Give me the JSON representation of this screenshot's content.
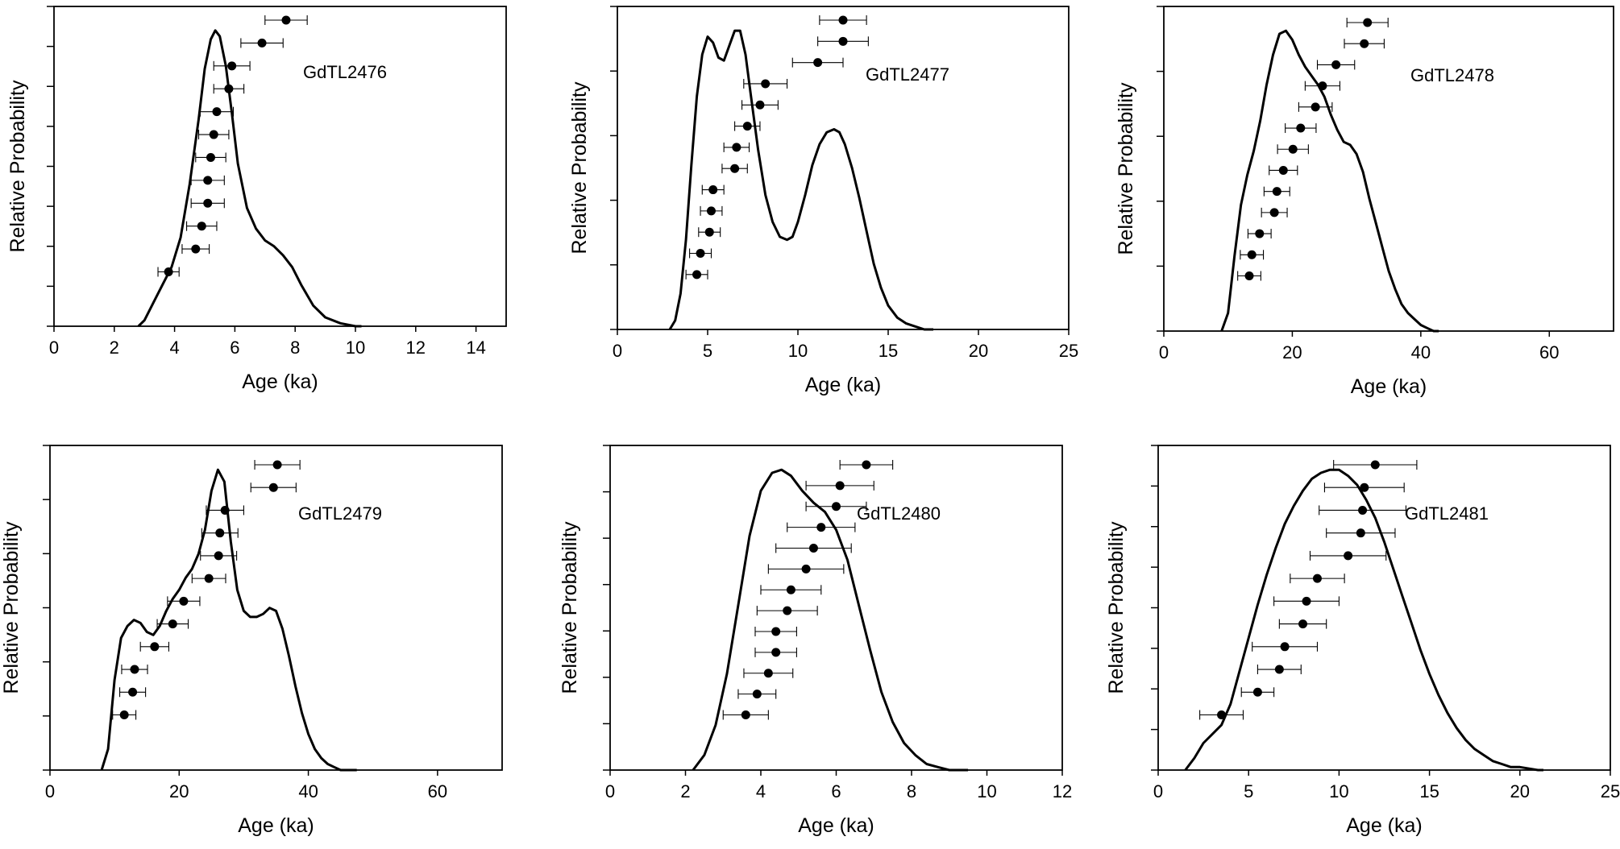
{
  "chart_data": [
    {
      "type": "line",
      "title": "GdTL2476",
      "xlabel": "Age (ka)",
      "ylabel": "Relative Probability",
      "xlim": [
        0,
        15
      ],
      "xticks": [
        0,
        2,
        4,
        6,
        8,
        10,
        12,
        14
      ],
      "yticks_count": 8,
      "grid": false,
      "legend": "none",
      "series": [
        {
          "kind": "density",
          "x": [
            2.8,
            3.0,
            3.3,
            3.6,
            3.9,
            4.2,
            4.5,
            4.8,
            5.0,
            5.2,
            5.35,
            5.5,
            5.7,
            5.9,
            6.1,
            6.4,
            6.7,
            7.0,
            7.3,
            7.6,
            7.9,
            8.2,
            8.6,
            9.0,
            9.5,
            10.0,
            10.2
          ],
          "y": [
            0.0,
            0.02,
            0.08,
            0.14,
            0.2,
            0.3,
            0.48,
            0.7,
            0.87,
            0.97,
            1.0,
            0.98,
            0.88,
            0.72,
            0.55,
            0.4,
            0.33,
            0.29,
            0.27,
            0.24,
            0.2,
            0.14,
            0.07,
            0.03,
            0.01,
            0.0,
            0.0
          ]
        },
        {
          "kind": "ages",
          "age": [
            3.8,
            4.7,
            4.9,
            5.1,
            5.1,
            5.2,
            5.3,
            5.4,
            5.8,
            5.9,
            6.9,
            7.7
          ],
          "err": [
            0.35,
            0.45,
            0.5,
            0.55,
            0.55,
            0.5,
            0.5,
            0.55,
            0.5,
            0.6,
            0.7,
            0.7
          ]
        }
      ]
    },
    {
      "type": "line",
      "title": "GdTL2477",
      "xlabel": "Age (ka)",
      "ylabel": "Relative Probability",
      "xlim": [
        0,
        25
      ],
      "xticks": [
        0,
        5,
        10,
        15,
        20,
        25
      ],
      "yticks_count": 5,
      "grid": false,
      "legend": "none",
      "series": [
        {
          "kind": "density",
          "x": [
            2.9,
            3.2,
            3.5,
            3.8,
            4.1,
            4.4,
            4.7,
            5.0,
            5.3,
            5.6,
            5.9,
            6.2,
            6.5,
            6.8,
            7.1,
            7.4,
            7.8,
            8.2,
            8.6,
            9.0,
            9.4,
            9.7,
            10.0,
            10.4,
            10.8,
            11.2,
            11.6,
            12.0,
            12.3,
            12.6,
            13.0,
            13.4,
            13.8,
            14.2,
            14.6,
            15.0,
            15.5,
            16.0,
            16.5,
            17.0,
            17.5
          ],
          "y": [
            0.0,
            0.03,
            0.12,
            0.3,
            0.55,
            0.78,
            0.92,
            0.98,
            0.96,
            0.91,
            0.9,
            0.95,
            1.0,
            1.0,
            0.92,
            0.78,
            0.6,
            0.45,
            0.36,
            0.31,
            0.3,
            0.31,
            0.36,
            0.45,
            0.55,
            0.62,
            0.66,
            0.67,
            0.66,
            0.62,
            0.54,
            0.44,
            0.33,
            0.22,
            0.14,
            0.08,
            0.04,
            0.02,
            0.01,
            0.0,
            0.0
          ]
        },
        {
          "kind": "ages",
          "age": [
            4.4,
            4.6,
            5.1,
            5.2,
            5.3,
            6.5,
            6.6,
            7.2,
            7.9,
            8.2,
            11.1,
            12.5,
            12.5
          ],
          "err": [
            0.6,
            0.6,
            0.6,
            0.6,
            0.6,
            0.7,
            0.7,
            0.7,
            1.0,
            1.2,
            1.4,
            1.4,
            1.3
          ]
        }
      ]
    },
    {
      "type": "line",
      "title": "GdTL2478",
      "xlabel": "Age (ka)",
      "ylabel": "Relative Probability",
      "xlim": [
        0,
        70
      ],
      "xticks": [
        0,
        20,
        40,
        60
      ],
      "yticks_count": 5,
      "grid": false,
      "legend": "none",
      "series": [
        {
          "kind": "density",
          "x": [
            9.0,
            10.0,
            11.0,
            12.0,
            13.0,
            14.0,
            15.0,
            16.0,
            17.0,
            18.0,
            19.0,
            20.0,
            21.0,
            22.0,
            23.0,
            24.0,
            25.0,
            26.0,
            27.0,
            28.0,
            29.0,
            30.0,
            31.0,
            32.0,
            33.0,
            34.0,
            35.0,
            36.0,
            37.0,
            38.0,
            39.0,
            40.0,
            41.0,
            42.0,
            42.8
          ],
          "y": [
            0.0,
            0.06,
            0.25,
            0.42,
            0.52,
            0.6,
            0.7,
            0.82,
            0.92,
            0.99,
            1.0,
            0.97,
            0.92,
            0.88,
            0.85,
            0.82,
            0.78,
            0.72,
            0.67,
            0.63,
            0.62,
            0.59,
            0.53,
            0.44,
            0.36,
            0.28,
            0.2,
            0.14,
            0.09,
            0.06,
            0.04,
            0.02,
            0.01,
            0.0,
            0.0
          ]
        },
        {
          "kind": "ages",
          "age": [
            13.3,
            13.7,
            14.9,
            17.2,
            17.6,
            18.6,
            20.1,
            21.3,
            23.6,
            24.7,
            26.8,
            31.2,
            31.7
          ],
          "err": [
            1.8,
            1.8,
            1.8,
            2.0,
            2.0,
            2.2,
            2.4,
            2.4,
            2.6,
            2.7,
            2.9,
            3.1,
            3.2
          ]
        }
      ]
    },
    {
      "type": "line",
      "title": "GdTL2479",
      "xlabel": "Age (ka)",
      "ylabel": "Relative Probability",
      "xlim": [
        0,
        70
      ],
      "xticks": [
        0,
        20,
        40,
        60
      ],
      "yticks_count": 6,
      "grid": false,
      "legend": "none",
      "series": [
        {
          "kind": "density",
          "x": [
            8.0,
            9.0,
            10.0,
            11.0,
            12.0,
            13.0,
            14.0,
            15.0,
            16.0,
            17.0,
            18.0,
            19.0,
            20.0,
            21.0,
            22.0,
            23.0,
            24.0,
            25.0,
            26.0,
            27.0,
            28.0,
            29.0,
            30.0,
            31.0,
            32.0,
            33.0,
            34.0,
            35.0,
            36.0,
            37.0,
            38.0,
            39.0,
            40.0,
            41.0,
            42.0,
            43.0,
            44.0,
            45.0,
            46.0,
            47.5
          ],
          "y": [
            0.0,
            0.07,
            0.3,
            0.44,
            0.48,
            0.5,
            0.49,
            0.46,
            0.45,
            0.48,
            0.53,
            0.57,
            0.6,
            0.64,
            0.67,
            0.72,
            0.8,
            0.93,
            1.0,
            0.96,
            0.76,
            0.6,
            0.53,
            0.51,
            0.51,
            0.52,
            0.54,
            0.53,
            0.47,
            0.38,
            0.28,
            0.19,
            0.12,
            0.07,
            0.04,
            0.02,
            0.01,
            0.0,
            0.0,
            0.0
          ]
        },
        {
          "kind": "ages",
          "age": [
            11.5,
            12.8,
            13.1,
            16.2,
            19.0,
            20.7,
            24.6,
            26.1,
            26.3,
            27.1,
            34.6,
            35.2
          ],
          "err": [
            1.8,
            2.0,
            2.0,
            2.2,
            2.4,
            2.5,
            2.6,
            2.8,
            2.8,
            2.9,
            3.5,
            3.5
          ]
        }
      ]
    },
    {
      "type": "line",
      "title": "GdTL2480",
      "xlabel": "Age (ka)",
      "ylabel": "Relative Probability",
      "xlim": [
        0,
        12
      ],
      "xticks": [
        0,
        2,
        4,
        6,
        8,
        10,
        12
      ],
      "yticks_count": 7,
      "grid": false,
      "legend": "none",
      "series": [
        {
          "kind": "density",
          "x": [
            2.2,
            2.5,
            2.8,
            3.1,
            3.4,
            3.7,
            4.0,
            4.3,
            4.55,
            4.8,
            5.1,
            5.4,
            5.7,
            6.0,
            6.3,
            6.6,
            6.9,
            7.2,
            7.5,
            7.8,
            8.1,
            8.4,
            8.7,
            9.0,
            9.3,
            9.5
          ],
          "y": [
            0.0,
            0.05,
            0.15,
            0.32,
            0.55,
            0.78,
            0.93,
            0.99,
            1.0,
            0.98,
            0.93,
            0.89,
            0.86,
            0.8,
            0.7,
            0.55,
            0.4,
            0.26,
            0.16,
            0.09,
            0.05,
            0.02,
            0.01,
            0.0,
            0.0,
            0.0
          ]
        },
        {
          "kind": "ages",
          "age": [
            3.6,
            3.9,
            4.2,
            4.4,
            4.4,
            4.7,
            4.8,
            5.2,
            5.4,
            5.6,
            6.0,
            6.1,
            6.8
          ],
          "err": [
            0.6,
            0.5,
            0.65,
            0.55,
            0.55,
            0.8,
            0.8,
            1.0,
            1.0,
            0.9,
            0.8,
            0.9,
            0.7
          ]
        }
      ]
    },
    {
      "type": "line",
      "title": "GdTL2481",
      "xlabel": "Age (ka)",
      "ylabel": "Relative Probability",
      "xlim": [
        0,
        25
      ],
      "xticks": [
        0,
        5,
        10,
        15,
        20,
        25
      ],
      "yticks_count": 8,
      "grid": false,
      "legend": "none",
      "series": [
        {
          "kind": "density",
          "x": [
            1.5,
            2.0,
            2.5,
            3.0,
            3.5,
            4.0,
            4.5,
            5.0,
            5.5,
            6.0,
            6.5,
            7.0,
            7.5,
            8.0,
            8.5,
            9.0,
            9.5,
            10.0,
            10.5,
            11.0,
            11.5,
            12.0,
            12.5,
            13.0,
            13.5,
            14.0,
            14.5,
            15.0,
            15.5,
            16.0,
            16.5,
            17.0,
            17.5,
            18.0,
            18.5,
            19.0,
            19.5,
            20.0,
            21.0,
            21.3
          ],
          "y": [
            0.0,
            0.04,
            0.09,
            0.12,
            0.15,
            0.22,
            0.33,
            0.44,
            0.55,
            0.65,
            0.74,
            0.82,
            0.88,
            0.93,
            0.97,
            0.99,
            1.0,
            1.0,
            0.98,
            0.95,
            0.9,
            0.84,
            0.76,
            0.67,
            0.58,
            0.49,
            0.4,
            0.32,
            0.25,
            0.19,
            0.14,
            0.1,
            0.07,
            0.05,
            0.03,
            0.02,
            0.01,
            0.01,
            0.0,
            0.0
          ]
        },
        {
          "kind": "ages",
          "age": [
            3.5,
            5.5,
            6.7,
            7.0,
            8.0,
            8.2,
            8.8,
            10.5,
            11.2,
            11.3,
            11.4,
            12.0
          ],
          "err": [
            1.2,
            0.9,
            1.2,
            1.8,
            1.3,
            1.8,
            1.5,
            2.1,
            1.9,
            2.4,
            2.2,
            2.3
          ]
        }
      ]
    }
  ]
}
